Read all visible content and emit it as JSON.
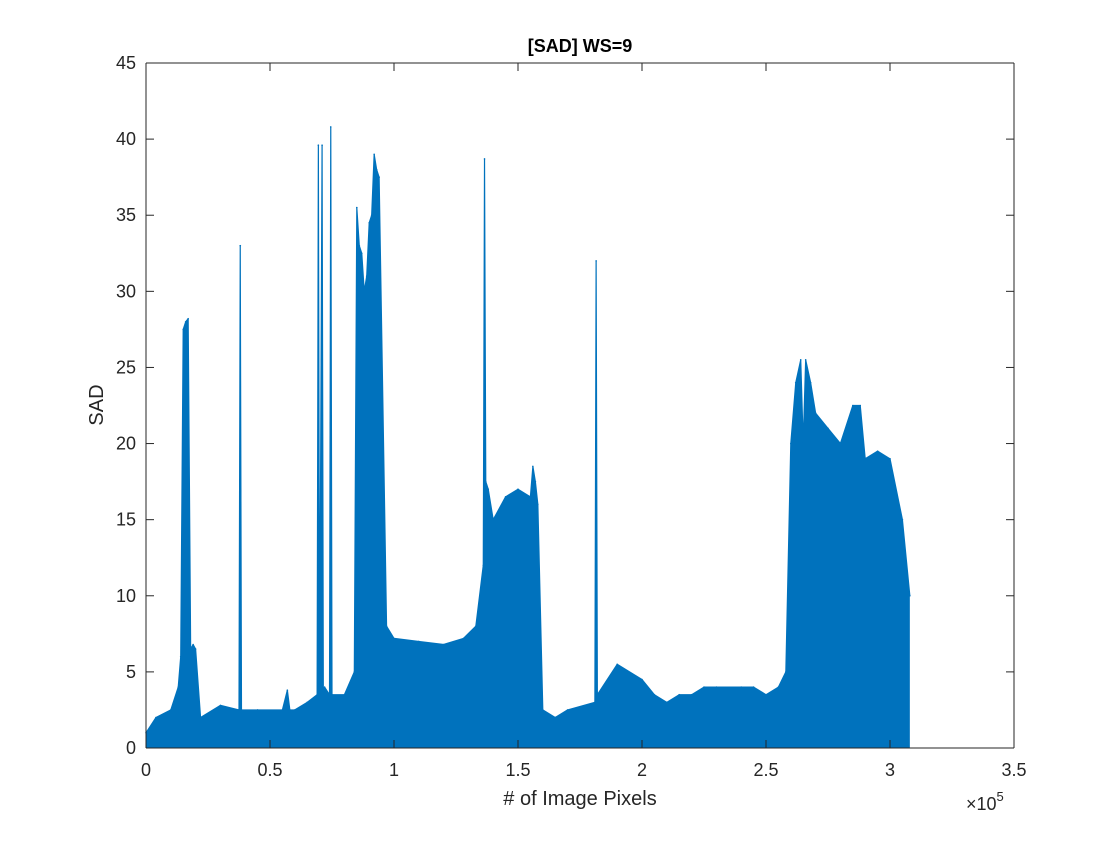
{
  "chart_data": {
    "type": "line",
    "title": "[SAD] WS=9",
    "xlabel": "# of Image Pixels",
    "ylabel": "SAD",
    "xlim": [
      0,
      350000
    ],
    "ylim": [
      0,
      45
    ],
    "x_ticks": [
      0,
      50000,
      100000,
      150000,
      200000,
      250000,
      300000,
      350000
    ],
    "x_tick_labels": [
      "0",
      "0.5",
      "1",
      "1.5",
      "2",
      "2.5",
      "3",
      "3.5"
    ],
    "x_exponent_label": "×10",
    "x_exponent_power": "5",
    "y_ticks": [
      0,
      5,
      10,
      15,
      20,
      25,
      30,
      35,
      40,
      45
    ],
    "y_tick_labels": [
      "0",
      "5",
      "10",
      "15",
      "20",
      "25",
      "30",
      "35",
      "40",
      "45"
    ],
    "grid": false,
    "series": [
      {
        "color": "#0072BD",
        "x": [
          0,
          4000,
          10000,
          13000,
          14000,
          15000,
          16000,
          17000,
          18000,
          19000,
          20000,
          22000,
          30000,
          37500,
          38000,
          38500,
          45000,
          55000,
          57000,
          58000,
          60000,
          65000,
          69000,
          69500,
          70000,
          71000,
          71500,
          72000,
          74000,
          74500,
          75000,
          80000,
          84000,
          85000,
          86000,
          87000,
          88000,
          89000,
          90000,
          91000,
          92000,
          93000,
          94000,
          97000,
          100000,
          110000,
          120000,
          128000,
          133000,
          136000,
          136500,
          137000,
          138000,
          140000,
          145000,
          150000,
          155000,
          156000,
          157000,
          158000,
          160000,
          165000,
          170000,
          181000,
          181500,
          182000,
          190000,
          200000,
          205000,
          210000,
          215000,
          220000,
          225000,
          230000,
          240000,
          245000,
          250000,
          255000,
          258000,
          260000,
          262000,
          264000,
          265000,
          266000,
          268000,
          270000,
          275000,
          280000,
          285000,
          288000,
          290000,
          295000,
          300000,
          305000,
          308000
        ],
        "values": [
          1,
          2,
          2.5,
          4,
          6,
          27.5,
          28,
          28.2,
          6.5,
          6.8,
          6.5,
          2,
          2.8,
          2.5,
          33,
          2.5,
          2.5,
          2.5,
          3.8,
          2.5,
          2.5,
          3,
          3.5,
          39.6,
          3.5,
          39.6,
          3.5,
          4,
          3.5,
          40.8,
          3.5,
          3.5,
          5,
          35.5,
          33,
          32.5,
          30,
          31,
          34.5,
          35,
          39,
          38,
          37.5,
          8,
          7.2,
          7,
          6.8,
          7.2,
          8,
          12,
          38.7,
          17.5,
          17,
          15,
          16.5,
          17,
          16.5,
          18.5,
          17.5,
          16,
          2.5,
          2,
          2.5,
          3,
          32,
          3.5,
          5.5,
          4.5,
          3.5,
          3,
          3.5,
          3.5,
          4,
          4,
          4,
          4,
          3.5,
          4,
          5,
          20,
          24,
          25.5,
          20,
          25.5,
          24,
          22,
          21,
          20,
          22.5,
          22.5,
          19,
          19.5,
          19,
          15,
          10
        ]
      }
    ]
  }
}
